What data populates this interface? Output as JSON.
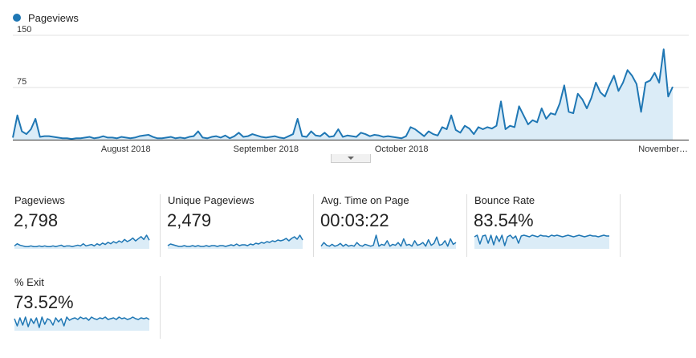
{
  "legend": {
    "series_label": "Pageviews",
    "series_color": "#1f77b4"
  },
  "chart_data": {
    "type": "area",
    "series": [
      {
        "name": "Pageviews",
        "values": [
          3,
          35,
          12,
          8,
          15,
          30,
          4,
          5,
          5,
          4,
          3,
          2,
          2,
          1,
          2,
          2,
          3,
          4,
          2,
          3,
          5,
          3,
          3,
          2,
          4,
          3,
          2,
          3,
          5,
          6,
          7,
          4,
          2,
          2,
          3,
          4,
          2,
          3,
          2,
          4,
          5,
          12,
          3,
          2,
          4,
          5,
          3,
          6,
          2,
          5,
          10,
          4,
          5,
          8,
          6,
          4,
          3,
          4,
          5,
          3,
          2,
          5,
          8,
          30,
          5,
          4,
          12,
          6,
          5,
          10,
          4,
          5,
          15,
          4,
          6,
          5,
          4,
          10,
          8,
          5,
          7,
          6,
          4,
          5,
          4,
          3,
          2,
          5,
          18,
          15,
          10,
          5,
          12,
          8,
          6,
          18,
          15,
          35,
          14,
          10,
          20,
          16,
          8,
          18,
          15,
          18,
          16,
          20,
          55,
          15,
          20,
          18,
          48,
          35,
          22,
          28,
          25,
          45,
          30,
          38,
          36,
          52,
          78,
          40,
          38,
          66,
          58,
          45,
          60,
          82,
          68,
          62,
          78,
          92,
          70,
          82,
          100,
          92,
          80,
          40,
          82,
          85,
          96,
          82,
          130,
          62,
          76
        ],
        "color": "#1f77b4"
      }
    ],
    "x_tick_labels": [
      "August 2018",
      "September 2018",
      "October 2018",
      "November…"
    ],
    "y_tick_labels": [
      "75",
      "150"
    ],
    "ylim": [
      0,
      150
    ],
    "grid": true
  },
  "metrics": [
    {
      "label": "Pageviews",
      "value": "2,798",
      "spark": [
        3,
        6,
        4,
        3,
        2,
        2,
        3,
        2,
        2,
        3,
        2,
        3,
        2,
        2,
        3,
        2,
        3,
        4,
        2,
        3,
        3,
        2,
        3,
        4,
        3,
        6,
        3,
        4,
        5,
        3,
        6,
        4,
        7,
        5,
        8,
        6,
        9,
        7,
        10,
        8,
        12,
        9,
        11,
        14,
        10,
        13,
        16,
        12,
        18,
        11
      ]
    },
    {
      "label": "Unique Pageviews",
      "value": "2,479",
      "spark": [
        3,
        5,
        4,
        3,
        2,
        2,
        3,
        2,
        2,
        3,
        2,
        3,
        2,
        2,
        3,
        2,
        3,
        3,
        2,
        3,
        3,
        2,
        3,
        4,
        3,
        5,
        3,
        4,
        4,
        3,
        5,
        4,
        6,
        5,
        7,
        6,
        8,
        7,
        9,
        8,
        10,
        9,
        10,
        12,
        9,
        12,
        14,
        11,
        16,
        10
      ]
    },
    {
      "label": "Avg. Time on Page",
      "value": "00:03:22",
      "spark": [
        2,
        6,
        3,
        2,
        4,
        2,
        3,
        5,
        2,
        4,
        2,
        3,
        2,
        6,
        3,
        2,
        4,
        3,
        2,
        3,
        14,
        2,
        4,
        3,
        8,
        2,
        4,
        3,
        6,
        2,
        10,
        3,
        4,
        2,
        8,
        3,
        4,
        6,
        2,
        9,
        3,
        5,
        12,
        3,
        4,
        8,
        2,
        10,
        4,
        6
      ]
    },
    {
      "label": "Bounce Rate",
      "value": "83.54%",
      "spark": [
        14,
        16,
        5,
        15,
        16,
        6,
        16,
        4,
        15,
        8,
        16,
        3,
        14,
        16,
        12,
        15,
        6,
        15,
        16,
        15,
        14,
        16,
        15,
        14,
        16,
        15,
        15,
        14,
        16,
        15,
        16,
        15,
        14,
        15,
        16,
        15,
        14,
        15,
        16,
        15,
        14,
        15,
        16,
        15,
        15,
        14,
        15,
        16,
        15,
        15
      ]
    },
    {
      "label": "% Exit",
      "value": "73.52%",
      "spark": [
        14,
        5,
        15,
        6,
        16,
        4,
        14,
        8,
        15,
        3,
        16,
        7,
        14,
        12,
        6,
        15,
        10,
        14,
        5,
        16,
        12,
        14,
        15,
        13,
        16,
        14,
        15,
        12,
        16,
        14,
        13,
        15,
        14,
        16,
        13,
        14,
        15,
        13,
        16,
        14,
        15,
        13,
        14,
        16,
        14,
        13,
        15,
        14,
        15,
        13
      ]
    }
  ]
}
